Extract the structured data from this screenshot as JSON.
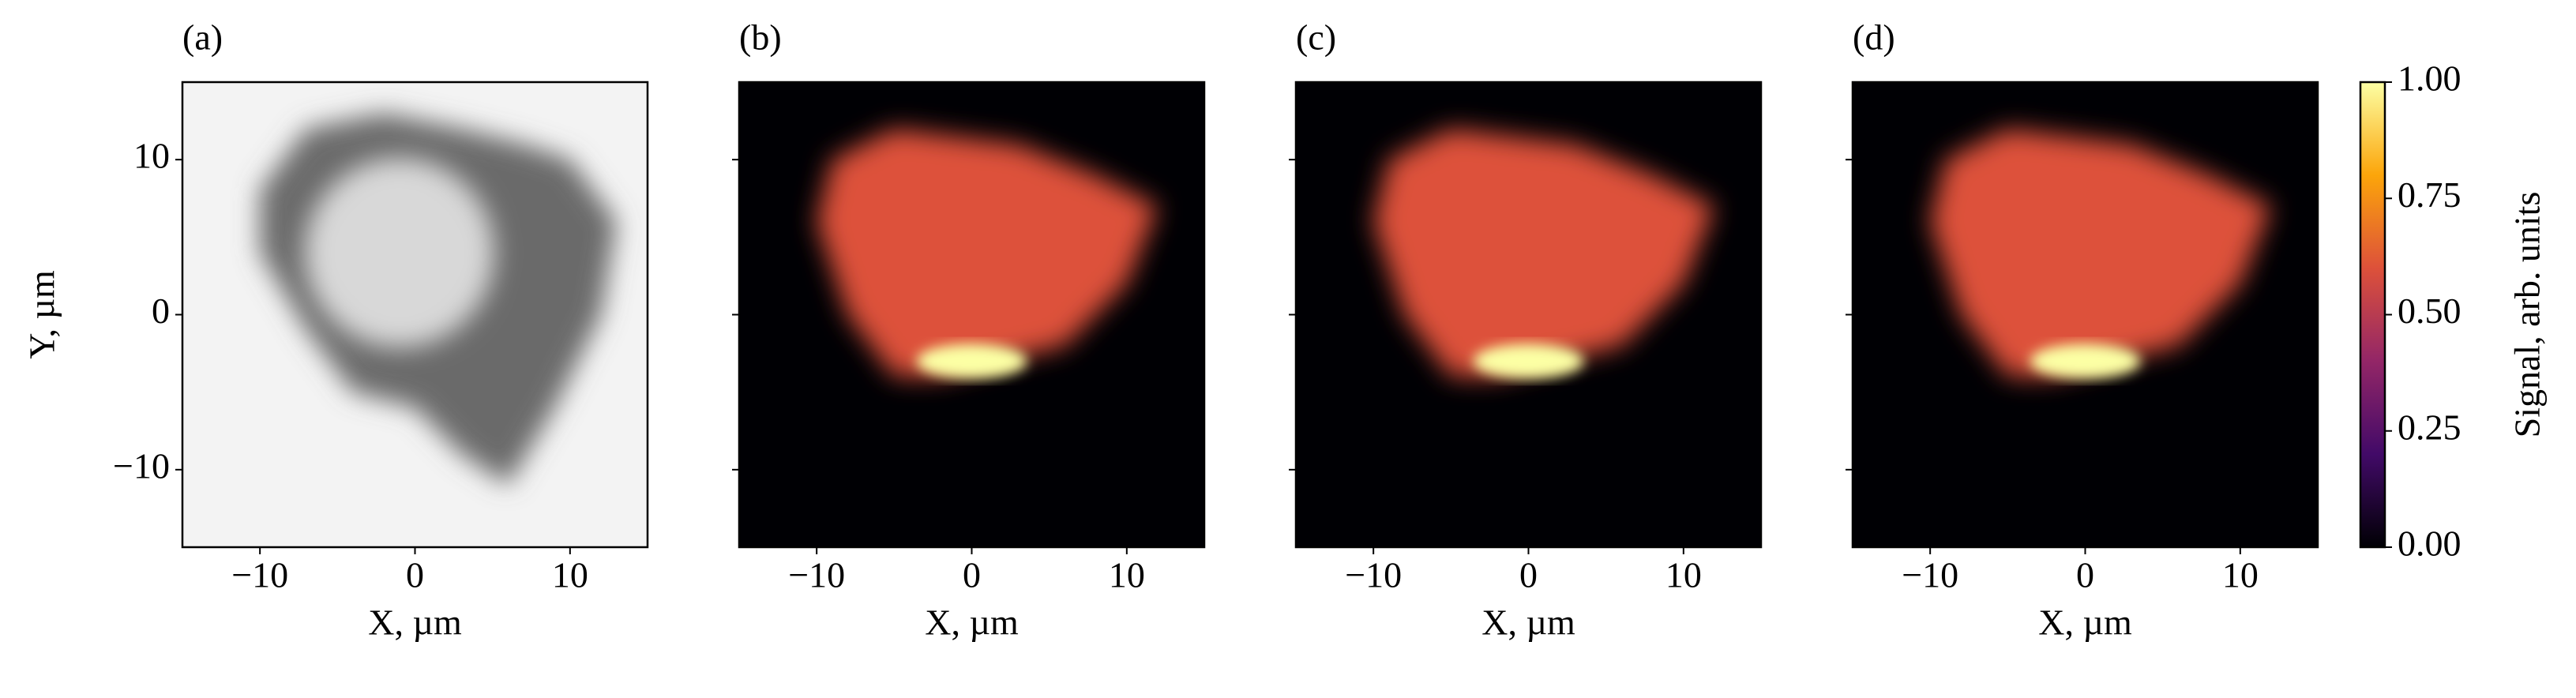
{
  "chart_data": [
    {
      "type": "heatmap",
      "panel_label": "(a)",
      "colormap": "gray",
      "xlabel": "X, µm",
      "ylabel": "Y, µm",
      "xlim": [
        -15,
        15
      ],
      "ylim": [
        -15,
        15
      ],
      "xticks": [
        {
          "value": -10,
          "label": "−10"
        },
        0,
        10
      ],
      "yticks": [
        {
          "value": -10,
          "label": "−10"
        },
        0,
        10
      ]
    },
    {
      "type": "heatmap",
      "panel_label": "(b)",
      "colormap": "inferno",
      "xlabel": "X, µm",
      "xlim": [
        -15,
        15
      ],
      "ylim": [
        -15,
        15
      ],
      "xticks": [
        {
          "value": -10,
          "label": "−10"
        },
        0,
        10
      ],
      "yticks": [
        -10,
        0,
        10
      ]
    },
    {
      "type": "heatmap",
      "panel_label": "(c)",
      "colormap": "inferno",
      "xlabel": "X, µm",
      "xlim": [
        -15,
        15
      ],
      "ylim": [
        -15,
        15
      ],
      "xticks": [
        {
          "value": -10,
          "label": "−10"
        },
        0,
        10
      ],
      "yticks": [
        -10,
        0,
        10
      ]
    },
    {
      "type": "heatmap",
      "panel_label": "(d)",
      "colormap": "inferno",
      "xlabel": "X, µm",
      "xlim": [
        -15,
        15
      ],
      "ylim": [
        -15,
        15
      ],
      "xticks": [
        {
          "value": -10,
          "label": "−10"
        },
        0,
        10
      ],
      "yticks": [
        -10,
        0,
        10
      ]
    },
    {
      "type": "colorbar",
      "label": "Signal, arb. units",
      "lim": [
        0,
        1
      ],
      "ticks": [
        {
          "value": 0,
          "label": "0.00"
        },
        {
          "value": 0.25,
          "label": "0.25"
        },
        {
          "value": 0.5,
          "label": "0.50"
        },
        {
          "value": 0.75,
          "label": "0.75"
        },
        {
          "value": 1,
          "label": "1.00"
        }
      ],
      "colors": [
        "#000004",
        "#420a68",
        "#932667",
        "#dd513a",
        "#fca50a",
        "#fcffa4"
      ]
    }
  ]
}
